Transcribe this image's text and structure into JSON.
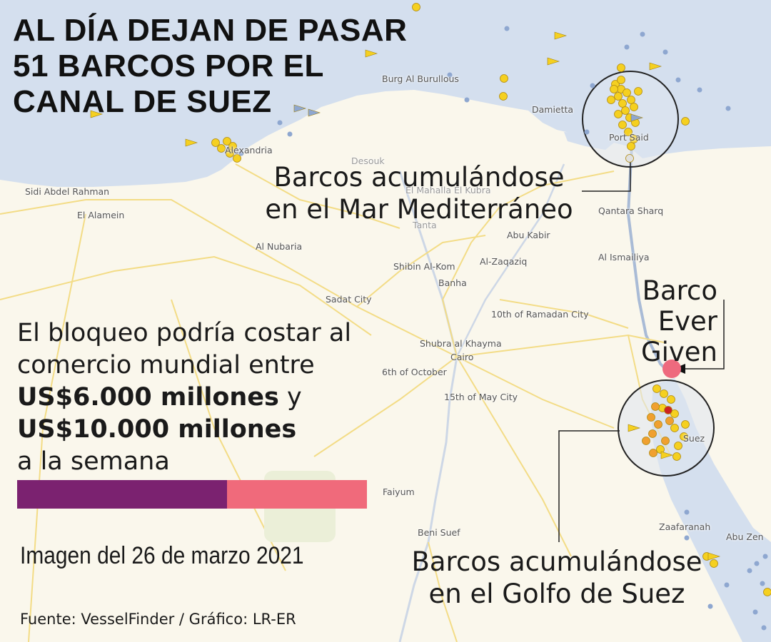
{
  "headline": {
    "line1": "AL DÍA DEJAN DE PASAR",
    "line2": "51 BARCOS POR EL",
    "line3": "CANAL DE SUEZ"
  },
  "places": {
    "burg_al_burullous": "Burg Al Burullous",
    "damietta": "Damietta",
    "port_said": "Port Said",
    "alexandria": "Alexandria",
    "desouk": "Desouk",
    "el_mahalla": "El Mahalla El Kubra",
    "sidi_abdel_rahman": "Sidi Abdel Rahman",
    "el_alamein": "El Alamein",
    "tanta": "Tanta",
    "qantara_sharq": "Qantara Sharq",
    "abu_kabir": "Abu Kabir",
    "al_nubaria": "Al Nubaria",
    "al_ismailiya": "Al Ismailiya",
    "shibin_al_kom": "Shibin Al-Kom",
    "al_zaqaziq": "Al-Zaqaziq",
    "banha": "Banha",
    "sadat_city": "Sadat City",
    "tenth_ramadan": "10th of Ramadan City",
    "shubra": "Shubra al Khayma",
    "cairo": "Cairo",
    "sixth_october": "6th of October",
    "fifteenth_may": "15th of May City",
    "suez": "Suez",
    "faiyum": "Faiyum",
    "beni_suef": "Beni Suef",
    "zaafaranah": "Zaafaranah",
    "abu_zenima": "Abu Zen"
  },
  "callouts": {
    "med": {
      "line1": "Barcos acumulándose",
      "line2": "en el Mar Mediterráneo"
    },
    "ship": {
      "line1": "Barco",
      "line2": "Ever Given"
    },
    "gulf": {
      "line1": "Barcos acumulándose",
      "line2": "en el Golfo de Suez"
    }
  },
  "cost": {
    "line1": "El bloqueo podría costar al",
    "line2": "comercio mundial entre",
    "amount_low": "US$6.000 millones",
    "conj": " y",
    "amount_high": "US$10.000 millones",
    "line5": "a la semana"
  },
  "cost_bar": {
    "low_value": 6000,
    "high_value": 10000,
    "low_color": "#7b2270",
    "high_color": "#f06a7b"
  },
  "date_note": "Imagen del 26 de marzo 2021",
  "source": "Fuente: VesselFinder / Gráfico: LR-ER",
  "colors": {
    "sea": "#d4dfee",
    "land": "#faf7ec",
    "road": "#f3dc86",
    "ship_yellow": "#f5d020",
    "ship_orange": "#f0a030",
    "ship_blue": "#8ea7d0",
    "ever_given": "#ee6a7e"
  }
}
